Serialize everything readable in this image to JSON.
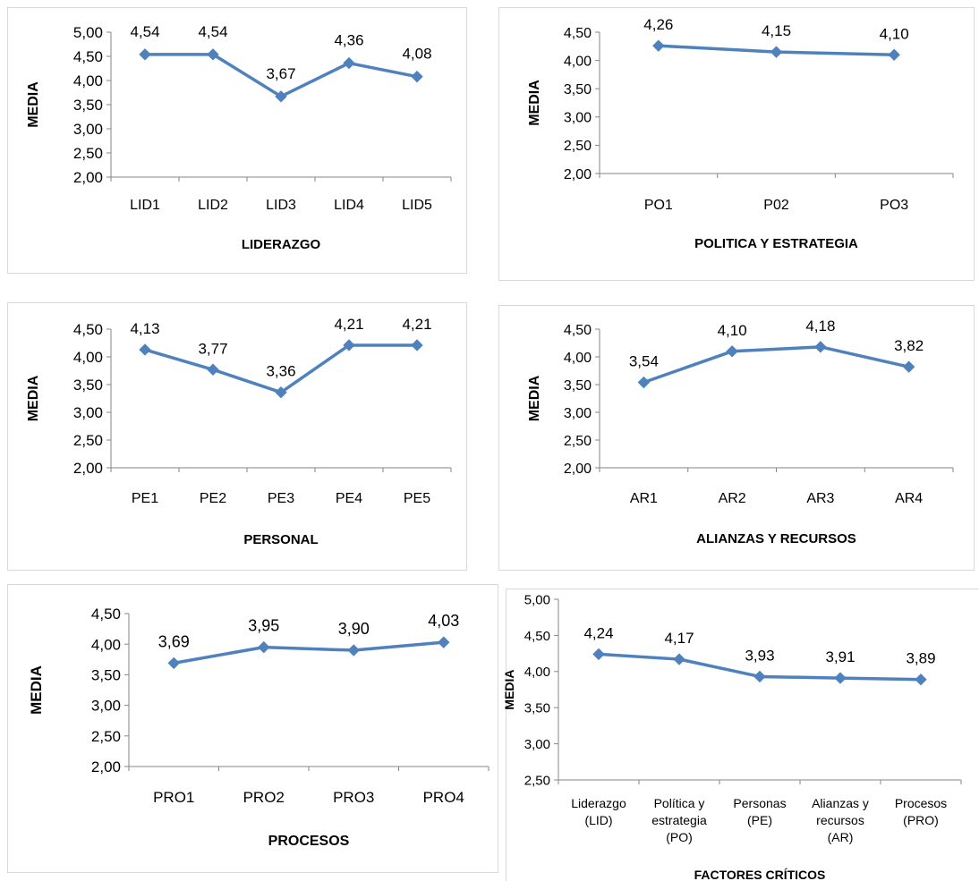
{
  "style": {
    "line_color": "#4f81bd",
    "axis_color": "#868686",
    "text_color": "#000000",
    "frame_color": "#d9d9d9"
  },
  "chart_data": [
    {
      "type": "line",
      "ylabel": "MEDIA",
      "xlabel": "LIDERAZGO",
      "ylim": [
        2.0,
        5.0
      ],
      "yticks": [
        "2,00",
        "2,50",
        "3,00",
        "3,50",
        "4,00",
        "4,50",
        "5,00"
      ],
      "categories": [
        "LID1",
        "LID2",
        "LID3",
        "LID4",
        "LID5"
      ],
      "values": [
        4.54,
        4.54,
        3.67,
        4.36,
        4.08
      ],
      "labels": [
        "4,54",
        "4,54",
        "3,67",
        "4,36",
        "4,08"
      ]
    },
    {
      "type": "line",
      "ylabel": "MEDIA",
      "xlabel": "POLITICA Y ESTRATEGIA",
      "ylim": [
        2.0,
        4.5
      ],
      "yticks": [
        "2,00",
        "2,50",
        "3,00",
        "3,50",
        "4,00",
        "4,50"
      ],
      "categories": [
        "PO1",
        "P02",
        "PO3"
      ],
      "values": [
        4.26,
        4.15,
        4.1
      ],
      "labels": [
        "4,26",
        "4,15",
        "4,10"
      ]
    },
    {
      "type": "line",
      "ylabel": "MEDIA",
      "xlabel": "PERSONAL",
      "ylim": [
        2.0,
        4.5
      ],
      "yticks": [
        "2,00",
        "2,50",
        "3,00",
        "3,50",
        "4,00",
        "4,50"
      ],
      "categories": [
        "PE1",
        "PE2",
        "PE3",
        "PE4",
        "PE5"
      ],
      "values": [
        4.13,
        3.77,
        3.36,
        4.21,
        4.21
      ],
      "labels": [
        "4,13",
        "3,77",
        "3,36",
        "4,21",
        "4,21"
      ]
    },
    {
      "type": "line",
      "ylabel": "MEDIA",
      "xlabel": "ALIANZAS Y RECURSOS",
      "ylim": [
        2.0,
        4.5
      ],
      "yticks": [
        "2,00",
        "2,50",
        "3,00",
        "3,50",
        "4,00",
        "4,50"
      ],
      "categories": [
        "AR1",
        "AR2",
        "AR3",
        "AR4"
      ],
      "values": [
        3.54,
        4.1,
        4.18,
        3.82
      ],
      "labels": [
        "3,54",
        "4,10",
        "4,18",
        "3,82"
      ]
    },
    {
      "type": "line",
      "ylabel": "MEDIA",
      "xlabel": "PROCESOS",
      "ylim": [
        2.0,
        4.5
      ],
      "yticks": [
        "2,00",
        "2,50",
        "3,00",
        "3,50",
        "4,00",
        "4,50"
      ],
      "categories": [
        "PRO1",
        "PRO2",
        "PRO3",
        "PRO4"
      ],
      "values": [
        3.69,
        3.95,
        3.9,
        4.03
      ],
      "labels": [
        "3,69",
        "3,95",
        "3,90",
        "4,03"
      ]
    },
    {
      "type": "line",
      "ylabel": "MEDIA",
      "xlabel": "FACTORES CRÍTICOS",
      "ylim": [
        2.5,
        5.0
      ],
      "yticks": [
        "2,50",
        "3,00",
        "3,50",
        "4,00",
        "4,50",
        "5,00"
      ],
      "categories": [
        [
          "Liderazgo",
          "(LID)"
        ],
        [
          "Política y",
          "estrategia",
          "(PO)"
        ],
        [
          "Personas",
          "(PE)"
        ],
        [
          "Alianzas y",
          "recursos",
          "(AR)"
        ],
        [
          "Procesos",
          "(PRO)"
        ]
      ],
      "values": [
        4.24,
        4.17,
        3.93,
        3.91,
        3.89
      ],
      "labels": [
        "4,24",
        "4,17",
        "3,93",
        "3,91",
        "3,89"
      ]
    }
  ]
}
